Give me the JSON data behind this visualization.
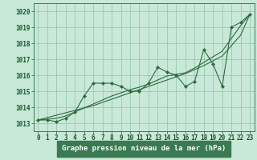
{
  "x": [
    0,
    1,
    2,
    3,
    4,
    5,
    6,
    7,
    8,
    9,
    10,
    11,
    12,
    13,
    14,
    15,
    16,
    17,
    18,
    19,
    20,
    21,
    22,
    23
  ],
  "y_main": [
    1013.2,
    1013.2,
    1013.1,
    1013.3,
    1013.7,
    1014.7,
    1015.5,
    1015.5,
    1015.5,
    1015.3,
    1015.0,
    1015.0,
    1015.5,
    1016.5,
    1016.2,
    1016.0,
    1015.3,
    1015.6,
    1017.6,
    1016.7,
    1015.3,
    1019.0,
    1019.3,
    1019.8
  ],
  "y_line1": [
    1013.2,
    1013.35,
    1013.5,
    1013.65,
    1013.8,
    1013.95,
    1014.1,
    1014.3,
    1014.5,
    1014.7,
    1014.9,
    1015.1,
    1015.3,
    1015.5,
    1015.7,
    1015.9,
    1016.1,
    1016.35,
    1016.6,
    1016.9,
    1017.2,
    1017.85,
    1018.5,
    1019.8
  ],
  "y_line2": [
    1013.2,
    1013.25,
    1013.3,
    1013.45,
    1013.7,
    1013.95,
    1014.2,
    1014.45,
    1014.7,
    1014.9,
    1015.1,
    1015.25,
    1015.45,
    1015.7,
    1015.95,
    1016.05,
    1016.15,
    1016.45,
    1016.8,
    1017.15,
    1017.5,
    1018.3,
    1019.1,
    1019.8
  ],
  "ylim": [
    1012.5,
    1020.5
  ],
  "yticks": [
    1013,
    1014,
    1015,
    1016,
    1017,
    1018,
    1019,
    1020
  ],
  "xlim": [
    -0.5,
    23.5
  ],
  "xticks": [
    0,
    1,
    2,
    3,
    4,
    5,
    6,
    7,
    8,
    9,
    10,
    11,
    12,
    13,
    14,
    15,
    16,
    17,
    18,
    19,
    20,
    21,
    22,
    23
  ],
  "xlabel": "Graphe pression niveau de la mer (hPa)",
  "line_color": "#2d6a3f",
  "bg_color": "#c8e8d8",
  "plot_bg": "#c8e8d8",
  "grid_color": "#90c4a8",
  "axis_color": "#2d6a3f",
  "label_color": "#1a5228",
  "bottom_bar_color": "#3a7a50",
  "marker": "D",
  "marker_size": 2.0,
  "tick_fontsize": 5.5,
  "xlabel_fontsize": 6.5
}
